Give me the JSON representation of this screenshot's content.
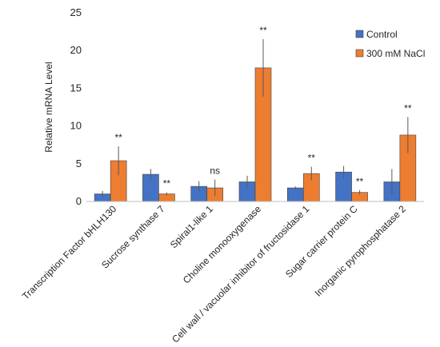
{
  "chart_data": {
    "type": "bar",
    "title": "",
    "xlabel": "",
    "ylabel": "Relative mRNA Level",
    "ylim": [
      0,
      25
    ],
    "yticks": [
      0,
      5,
      10,
      15,
      20,
      25
    ],
    "grid": false,
    "legend_position": "top-right",
    "categories": [
      "Transcription Factor bHLH130",
      "Sucrose synthase 7",
      "Spiral1-like 1",
      "Choline monooxygenase",
      "Cell wall / vacuolar inhibitor of fructosidase 1",
      "Sugar carrier protein C",
      "Inorganic pyrophosphatase 2"
    ],
    "series": [
      {
        "name": "Control",
        "color": "#4472C4",
        "values": [
          1.0,
          3.6,
          2.0,
          2.6,
          1.8,
          3.9,
          2.6
        ],
        "errors": [
          0.4,
          0.7,
          0.7,
          0.8,
          0.2,
          0.8,
          1.7
        ]
      },
      {
        "name": "300 mM NaCl",
        "color": "#ED7D31",
        "values": [
          5.4,
          1.0,
          1.8,
          17.7,
          3.7,
          1.2,
          8.8
        ],
        "errors": [
          1.9,
          0.2,
          1.1,
          3.8,
          0.9,
          0.3,
          2.4
        ]
      }
    ],
    "annotations": [
      "**",
      "**",
      "ns",
      "**",
      "**",
      "**",
      "**"
    ]
  }
}
